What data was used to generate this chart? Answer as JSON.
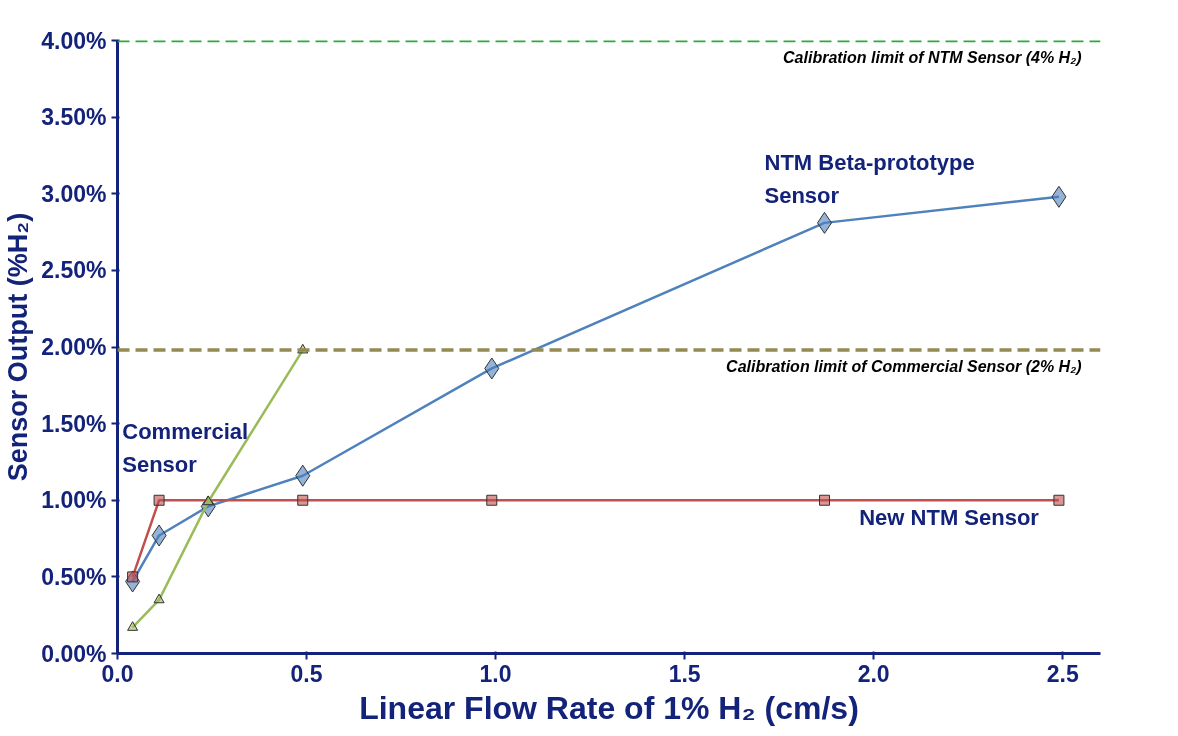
{
  "chart_data": {
    "type": "line",
    "xlabel": "Linear Flow Rate of 1% H₂ (cm/s)",
    "ylabel": "Sensor Output (%H₂)",
    "xlim": [
      0,
      2.6
    ],
    "ylim": [
      0,
      4
    ],
    "xticks": [
      {
        "value": 0,
        "label": "0.0"
      },
      {
        "value": 0.5,
        "label": "0.5"
      },
      {
        "value": 1,
        "label": "1.0"
      },
      {
        "value": 1.5,
        "label": "1.5"
      },
      {
        "value": 2,
        "label": "2.0"
      },
      {
        "value": 2.5,
        "label": "2.5"
      }
    ],
    "yticks": [
      {
        "value": 0,
        "label": "0.00%"
      },
      {
        "value": 0.5,
        "label": "0.50%"
      },
      {
        "value": 1,
        "label": "1.00%"
      },
      {
        "value": 1.5,
        "label": "1.50%"
      },
      {
        "value": 2,
        "label": "2.00%"
      },
      {
        "value": 2.5,
        "label": "2.50%"
      },
      {
        "value": 3,
        "label": "3.00%"
      },
      {
        "value": 3.5,
        "label": "3.50%"
      },
      {
        "value": 4,
        "label": "4.00%"
      }
    ],
    "grid": false,
    "series": [
      {
        "color": "#4f81bd",
        "marker": "diamond",
        "x": [
          0.04,
          0.11,
          0.24,
          0.49,
          0.99,
          1.87,
          2.49
        ],
        "values": [
          0.47,
          0.77,
          0.96,
          1.16,
          1.86,
          2.81,
          2.98
        ]
      },
      {
        "color": "#c0504d",
        "marker": "square",
        "x": [
          0.04,
          0.11,
          0.49,
          0.99,
          1.87,
          2.49
        ],
        "values": [
          0.5,
          1.0,
          1.0,
          1.0,
          1.0,
          1.0
        ]
      },
      {
        "color": "#9bbb59",
        "marker": "triangle",
        "x": [
          0.04,
          0.11,
          0.24,
          0.49
        ],
        "values": [
          0.17,
          0.35,
          0.99,
          1.98
        ]
      }
    ],
    "annotations": [
      {
        "text": "NTM Beta-prototype Sensor",
        "x": 1.87,
        "y": 2.81
      },
      {
        "text": "Commercial Sensor",
        "x": 0.24,
        "y": 0.99
      },
      {
        "text": "New NTM Sensor",
        "x": 2.49,
        "y": 1.0
      }
    ],
    "ref_lines": [
      {
        "axis": "y",
        "value": 4,
        "label": "Calibration limit of NTM Sensor (4% H₂)",
        "color": "#2eaa3a",
        "line_style": "dashed"
      },
      {
        "axis": "y",
        "value": 1.98,
        "label": "Calibration limit of Commercial Sensor (2% H₂)",
        "color": "#948a54",
        "line_style": "dashed"
      }
    ]
  }
}
